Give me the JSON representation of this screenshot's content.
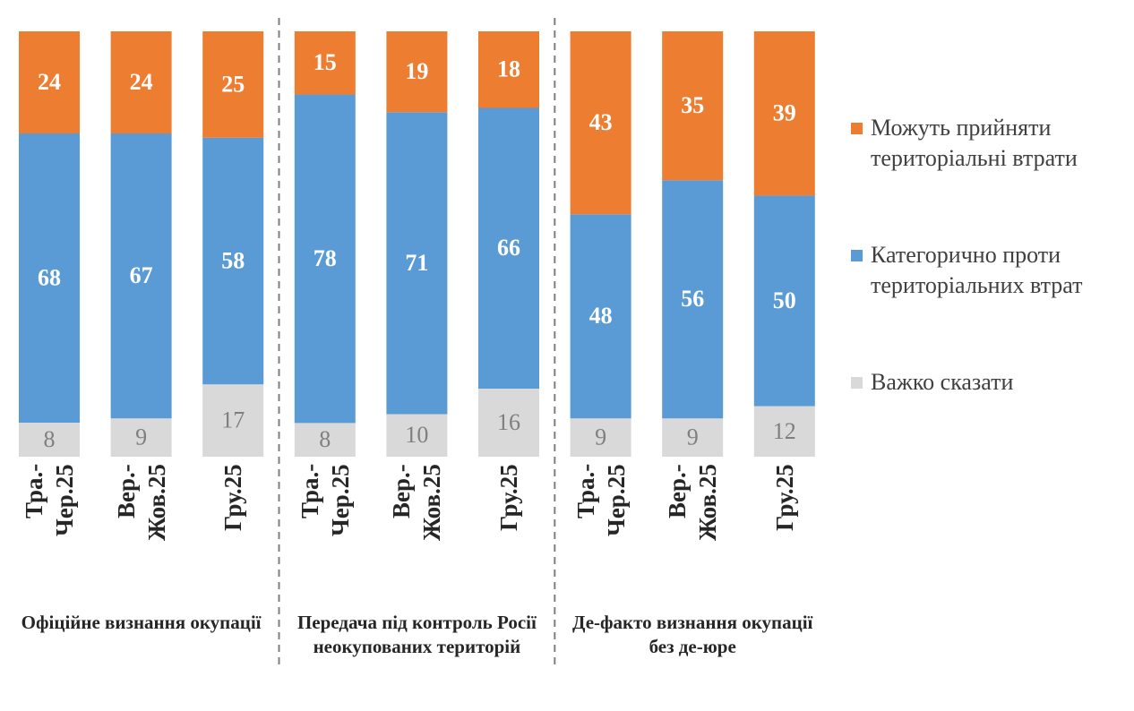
{
  "chart_data": {
    "type": "bar",
    "stacking": "percent",
    "categories": [
      "Тра.-Чер.25",
      "Вер.-Жов.25",
      "Гру.25",
      "Тра.-Чер.25",
      "Вер.-Жов.25",
      "Гру.25",
      "Тра.-Чер.25",
      "Вер.-Жов.25",
      "Гру.25"
    ],
    "groups": [
      "Офіційне визнання окупації",
      "Передача під контроль Росії неокупованих територій",
      "Де-факто визнання окупації без де-юре"
    ],
    "series": [
      {
        "name": "Важко сказати",
        "color": "#d9d9d9",
        "label_color": "#7f7f7f",
        "values": [
          8,
          9,
          17,
          8,
          10,
          16,
          9,
          9,
          12
        ]
      },
      {
        "name": "Категорично проти територіальних втрат",
        "color": "#5b9bd5",
        "label_color": "#ffffff",
        "values": [
          68,
          67,
          58,
          78,
          71,
          66,
          48,
          56,
          50
        ]
      },
      {
        "name": "Можуть прийняти територіальні втрати",
        "color": "#ed7d31",
        "label_color": "#ffffff",
        "values": [
          24,
          24,
          25,
          15,
          19,
          18,
          43,
          35,
          39
        ]
      }
    ]
  }
}
